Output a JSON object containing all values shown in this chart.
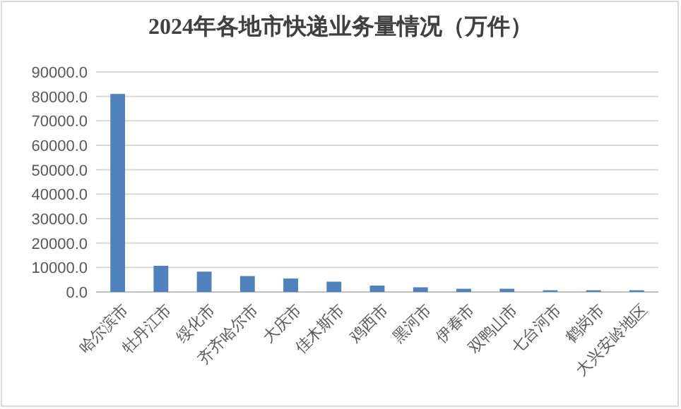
{
  "chart_data": {
    "type": "bar",
    "title": "2024年各地市快递业务量情况（万件）",
    "categories": [
      "哈尔滨市",
      "牡丹江市",
      "绥化市",
      "齐齐哈尔市",
      "大庆市",
      "佳木斯市",
      "鸡西市",
      "黑河市",
      "伊春市",
      "双鸭山市",
      "七台河市",
      "鹤岗市",
      "大兴安岭地区"
    ],
    "values": [
      81000,
      10700,
      8300,
      6500,
      5500,
      4200,
      2600,
      1900,
      1300,
      1300,
      700,
      700,
      700
    ],
    "color": "#4f81bd",
    "ylim": [
      0,
      90000
    ],
    "yticks": [
      {
        "value": 0,
        "label": "0.0"
      },
      {
        "value": 10000,
        "label": "10000.0"
      },
      {
        "value": 20000,
        "label": "20000.0"
      },
      {
        "value": 30000,
        "label": "30000.0"
      },
      {
        "value": 40000,
        "label": "40000.0"
      },
      {
        "value": 50000,
        "label": "50000.0"
      },
      {
        "value": 60000,
        "label": "60000.0"
      },
      {
        "value": 70000,
        "label": "70000.0"
      },
      {
        "value": 80000,
        "label": "80000.0"
      },
      {
        "value": 90000,
        "label": "90000.0"
      }
    ],
    "grid": "y"
  }
}
